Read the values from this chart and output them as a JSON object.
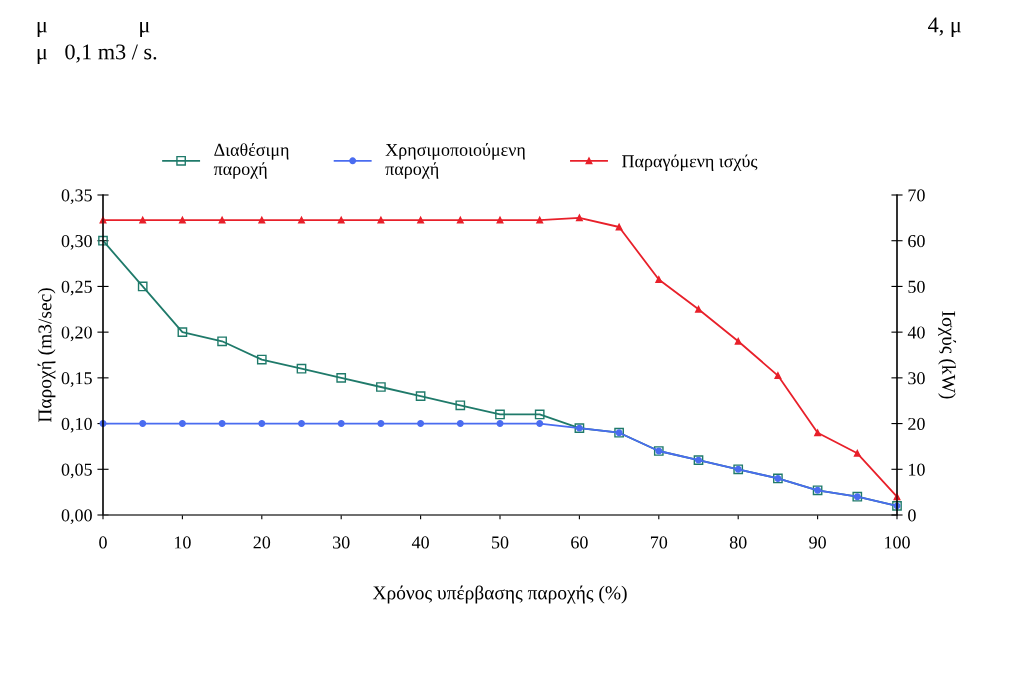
{
  "chart_data": {
    "type": "line",
    "annotations": [
      "μ",
      "μ",
      "4, μ",
      "μ   0,1 m3 / s."
    ],
    "xlabel": "Χρόνος υπέρβασης παροχής (%)",
    "ylabel": "Παροχή (m3/sec)",
    "y2label": "Ισχύς (kW)",
    "x": [
      0,
      5,
      10,
      15,
      20,
      25,
      30,
      35,
      40,
      45,
      50,
      55,
      60,
      65,
      70,
      75,
      80,
      85,
      90,
      95,
      100
    ],
    "series": [
      {
        "name": "Διαθέσιμη\nπαροχή",
        "color": "#1f7a6a",
        "marker": "square",
        "values": [
          0.3,
          0.25,
          0.2,
          0.19,
          0.17,
          0.16,
          0.15,
          0.14,
          0.13,
          0.12,
          0.11,
          0.11,
          0.095,
          0.09,
          0.07,
          0.06,
          0.05,
          0.04,
          0.027,
          0.02,
          0.01
        ]
      },
      {
        "name": "Χρησιμοποιούμενη\nπαροχή",
        "color": "#4a6cf0",
        "marker": "circle",
        "values": [
          0.1,
          0.1,
          0.1,
          0.1,
          0.1,
          0.1,
          0.1,
          0.1,
          0.1,
          0.1,
          0.1,
          0.1,
          0.095,
          0.09,
          0.07,
          0.06,
          0.05,
          0.04,
          0.027,
          0.02,
          0.01
        ]
      },
      {
        "name": "Παραγόμενη ισχύς",
        "color": "#e8202a",
        "marker": "triangle",
        "axis": "y2",
        "values": [
          64.5,
          64.5,
          64.5,
          64.5,
          64.5,
          64.5,
          64.5,
          64.5,
          64.5,
          64.5,
          64.5,
          64.5,
          65,
          63,
          51.5,
          45,
          38,
          30.5,
          18,
          13.5,
          4
        ]
      }
    ],
    "xlim": [
      0,
      100
    ],
    "xticks": [
      0,
      10,
      20,
      30,
      40,
      50,
      60,
      70,
      80,
      90,
      100
    ],
    "ylim": [
      0,
      0.35
    ],
    "yticks": [
      {
        "value": 0,
        "label": "0,00"
      },
      {
        "value": 0.05,
        "label": "0,05"
      },
      {
        "value": 0.1,
        "label": "0,10"
      },
      {
        "value": 0.15,
        "label": "0,15"
      },
      {
        "value": 0.2,
        "label": "0,20"
      },
      {
        "value": 0.25,
        "label": "0,25"
      },
      {
        "value": 0.3,
        "label": "0,30"
      },
      {
        "value": 0.35,
        "label": "0,35"
      }
    ],
    "y2lim": [
      0,
      70
    ],
    "y2ticks": [
      0,
      10,
      20,
      30,
      40,
      50,
      60,
      70
    ],
    "legend": "top",
    "grid": false,
    "line_style": "solid"
  }
}
